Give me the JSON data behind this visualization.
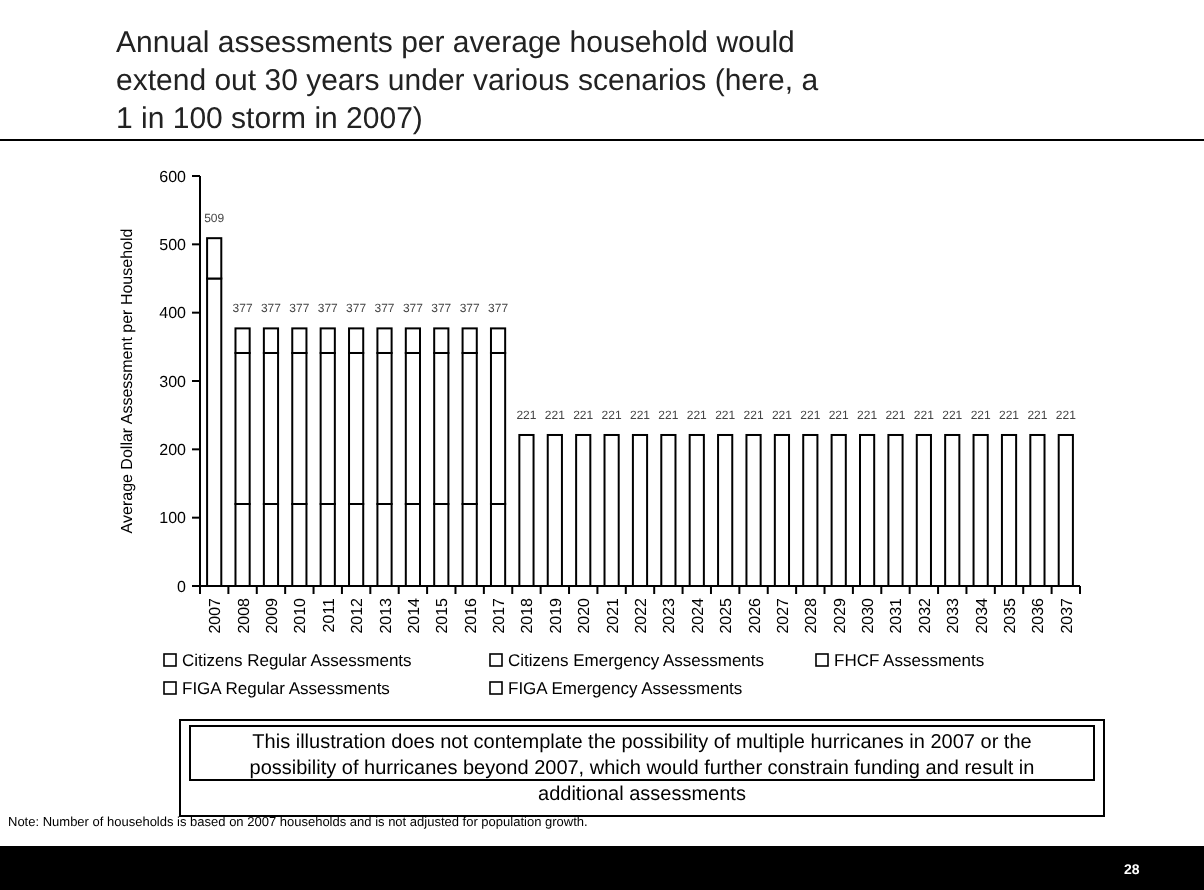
{
  "chart_data": {
    "type": "bar",
    "title": "Annual assessments per average household would extend out 30 years under various scenarios (here, a 1 in 100 storm in 2007)",
    "ylabel": "Average Dollar Assessment per Household",
    "categories": [
      "2007",
      "2008",
      "2009",
      "2010",
      "2011",
      "2012",
      "2013",
      "2014",
      "2015",
      "2016",
      "2017",
      "2018",
      "2019",
      "2020",
      "2021",
      "2022",
      "2023",
      "2024",
      "2025",
      "2026",
      "2027",
      "2028",
      "2029",
      "2030",
      "2031",
      "2032",
      "2033",
      "2034",
      "2035",
      "2036",
      "2037"
    ],
    "stacked": true,
    "series": [
      {
        "name": "Citizens Regular Assessments",
        "color": "#ffffff",
        "values": [
          450,
          null,
          null,
          null,
          null,
          null,
          null,
          null,
          null,
          null,
          null,
          null,
          null,
          null,
          null,
          null,
          null,
          null,
          null,
          null,
          null,
          null,
          null,
          null,
          null,
          null,
          null,
          null,
          null,
          null,
          null
        ]
      },
      {
        "name": "Citizens Emergency Assessments",
        "color": "#ffffff",
        "values": [
          null,
          120,
          120,
          120,
          120,
          120,
          120,
          120,
          120,
          120,
          120,
          null,
          null,
          null,
          null,
          null,
          null,
          null,
          null,
          null,
          null,
          null,
          null,
          null,
          null,
          null,
          null,
          null,
          null,
          null,
          null
        ]
      },
      {
        "name": "FHCF Assessments",
        "color": "#ffffff",
        "values": [
          null,
          221,
          221,
          221,
          221,
          221,
          221,
          221,
          221,
          221,
          221,
          221,
          221,
          221,
          221,
          221,
          221,
          221,
          221,
          221,
          221,
          221,
          221,
          221,
          221,
          221,
          221,
          221,
          221,
          221,
          221
        ]
      },
      {
        "name": "FIGA Regular Assessments",
        "color": "#ffffff",
        "values": [
          59,
          null,
          null,
          null,
          null,
          null,
          null,
          null,
          null,
          null,
          null,
          null,
          null,
          null,
          null,
          null,
          null,
          null,
          null,
          null,
          null,
          null,
          null,
          null,
          null,
          null,
          null,
          null,
          null,
          null,
          null
        ]
      },
      {
        "name": "FIGA Emergency Assessments",
        "color": "#ffffff",
        "values": [
          null,
          36,
          36,
          36,
          36,
          36,
          36,
          36,
          36,
          36,
          36,
          null,
          null,
          null,
          null,
          null,
          null,
          null,
          null,
          null,
          null,
          null,
          null,
          null,
          null,
          null,
          null,
          null,
          null,
          null,
          null
        ]
      }
    ],
    "totals": [
      "509",
      "377",
      "377",
      "377",
      "377",
      "377",
      "377",
      "377",
      "377",
      "377",
      "377",
      "221",
      "221",
      "221",
      "221",
      "221",
      "221",
      "221",
      "221",
      "221",
      "221",
      "221",
      "221",
      "221",
      "221",
      "221",
      "221",
      "221",
      "221",
      "221",
      "221"
    ],
    "ylim": [
      0,
      600
    ],
    "yticks": [
      0,
      100,
      200,
      300,
      400,
      500,
      600
    ],
    "grid": false,
    "legend": "bottom",
    "annotations": [
      "This illustration does not contemplate the possibility of multiple hurricanes in 2007 or the possibility of hurricanes beyond 2007, which would further constrain funding and result in additional assessments",
      "Note: Number of households is based on 2007 households and is not adjusted for population growth.",
      "28"
    ]
  }
}
